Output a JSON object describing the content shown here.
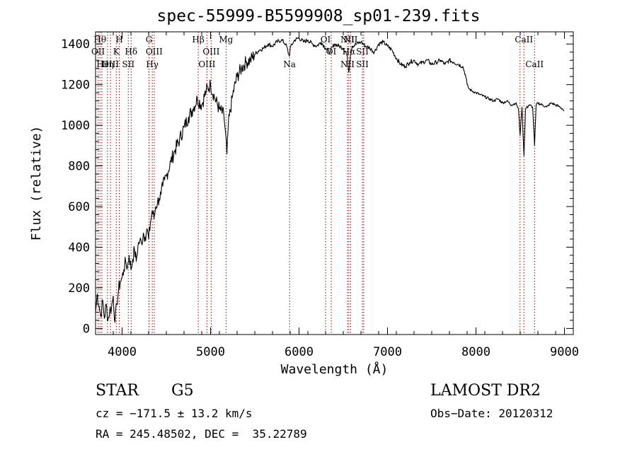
{
  "chart_data": {
    "type": "line",
    "title": "spec-55999-B5599908_sp01-239.fits",
    "xlabel": "Wavelength (Å)",
    "ylabel": "Flux (relative)",
    "xlim": [
      3700,
      9100
    ],
    "ylim": [
      -30,
      1460
    ],
    "x_ticks": [
      4000,
      5000,
      6000,
      7000,
      8000,
      9000
    ],
    "y_ticks": [
      0,
      200,
      400,
      600,
      800,
      1000,
      1200,
      1400
    ],
    "grid": false,
    "line_color": "#000000",
    "marker_color": "#8b0000",
    "series": [
      {
        "x": [
          3700,
          3720,
          3740,
          3760,
          3780,
          3800,
          3820,
          3840,
          3860,
          3880,
          3900,
          3920,
          3940,
          3960,
          3980,
          4000,
          4020,
          4040,
          4060,
          4080,
          4100,
          4120,
          4140,
          4160,
          4180,
          4200,
          4220,
          4240,
          4260,
          4280,
          4300,
          4320,
          4340,
          4360,
          4380,
          4400,
          4420,
          4440,
          4460,
          4480,
          4500,
          4550,
          4600,
          4650,
          4700,
          4750,
          4800,
          4850,
          4900,
          4950,
          5000,
          5050,
          5100,
          5150,
          5170,
          5185,
          5200,
          5250,
          5300,
          5350,
          5400,
          5450,
          5500,
          5550,
          5600,
          5650,
          5700,
          5750,
          5800,
          5850,
          5890,
          5900,
          5950,
          6000,
          6050,
          6100,
          6150,
          6200,
          6250,
          6300,
          6350,
          6400,
          6450,
          6500,
          6540,
          6563,
          6580,
          6600,
          6650,
          6700,
          6750,
          6800,
          6850,
          6900,
          6950,
          7000,
          7050,
          7100,
          7150,
          7200,
          7250,
          7300,
          7350,
          7400,
          7450,
          7500,
          7550,
          7600,
          7650,
          7700,
          7750,
          7800,
          7850,
          7880,
          7900,
          7920,
          7950,
          8000,
          8050,
          8100,
          8150,
          8200,
          8250,
          8300,
          8350,
          8400,
          8450,
          8480,
          8498,
          8520,
          8542,
          8560,
          8600,
          8640,
          8662,
          8680,
          8700,
          8750,
          8800,
          8850,
          8900,
          8950,
          8980,
          8995
        ],
        "y": [
          80,
          170,
          110,
          60,
          140,
          50,
          120,
          40,
          90,
          100,
          160,
          30,
          120,
          190,
          230,
          250,
          290,
          330,
          300,
          360,
          290,
          340,
          390,
          330,
          410,
          430,
          420,
          470,
          450,
          490,
          440,
          520,
          580,
          540,
          600,
          620,
          640,
          660,
          700,
          730,
          750,
          820,
          880,
          930,
          990,
          1040,
          1080,
          1130,
          1100,
          1170,
          1200,
          1130,
          1080,
          1050,
          960,
          860,
          1000,
          1150,
          1240,
          1280,
          1310,
          1320,
          1350,
          1370,
          1380,
          1400,
          1390,
          1410,
          1420,
          1400,
          1340,
          1380,
          1420,
          1430,
          1410,
          1420,
          1400,
          1390,
          1410,
          1380,
          1360,
          1400,
          1390,
          1380,
          1350,
          1260,
          1340,
          1390,
          1400,
          1410,
          1390,
          1380,
          1360,
          1400,
          1410,
          1390,
          1370,
          1330,
          1300,
          1290,
          1310,
          1320,
          1300,
          1310,
          1320,
          1300,
          1310,
          1320,
          1300,
          1320,
          1310,
          1300,
          1290,
          1250,
          1200,
          1180,
          1170,
          1160,
          1150,
          1140,
          1130,
          1120,
          1130,
          1110,
          1120,
          1100,
          1110,
          1080,
          950,
          1090,
          850,
          1080,
          1100,
          1090,
          900,
          1100,
          1110,
          1100,
          1090,
          1110,
          1100,
          1090,
          1080,
          1070
        ]
      }
    ],
    "line_markers": [
      {
        "x": 3729,
        "labels": [
          {
            "text": "OII",
            "row": 1
          }
        ]
      },
      {
        "x": 3750,
        "labels": [
          {
            "text": "Hθ",
            "row": 0
          }
        ]
      },
      {
        "x": 3771,
        "labels": [
          {
            "text": "Hι",
            "row": 2
          }
        ]
      },
      {
        "x": 3835,
        "labels": [
          {
            "text": "Hη",
            "row": 2
          }
        ]
      },
      {
        "x": 3869,
        "labels": [
          {
            "text": "OIII",
            "row": 2
          }
        ]
      },
      {
        "x": 3934,
        "labels": [
          {
            "text": "K",
            "row": 1
          }
        ]
      },
      {
        "x": 3969,
        "labels": [
          {
            "text": "H",
            "row": 0
          }
        ]
      },
      {
        "x": 4070,
        "labels": [
          {
            "text": "SII",
            "row": 2
          }
        ]
      },
      {
        "x": 4102,
        "labels": [
          {
            "text": "Hδ",
            "row": 1
          }
        ]
      },
      {
        "x": 4304,
        "labels": [
          {
            "text": "G",
            "row": 0
          }
        ]
      },
      {
        "x": 4341,
        "labels": [
          {
            "text": "Hγ",
            "row": 2
          }
        ]
      },
      {
        "x": 4363,
        "labels": [
          {
            "text": "OIII",
            "row": 1
          }
        ]
      },
      {
        "x": 4861,
        "labels": [
          {
            "text": "Hβ",
            "row": 0
          }
        ]
      },
      {
        "x": 4959,
        "labels": [
          {
            "text": "OIII",
            "row": 2
          }
        ]
      },
      {
        "x": 5007,
        "labels": [
          {
            "text": "OIII",
            "row": 1
          }
        ]
      },
      {
        "x": 5175,
        "labels": [
          {
            "text": "Mg",
            "row": 0
          }
        ]
      },
      {
        "x": 5893,
        "labels": [
          {
            "text": "Na",
            "row": 2
          }
        ]
      },
      {
        "x": 6300,
        "labels": [
          {
            "text": "OI",
            "row": 0
          }
        ]
      },
      {
        "x": 6364,
        "labels": [
          {
            "text": "OI",
            "row": 1
          }
        ]
      },
      {
        "x": 6548,
        "labels": [
          {
            "text": "NII",
            "row": 0
          },
          {
            "text": "NII",
            "row": 2
          }
        ]
      },
      {
        "x": 6563,
        "labels": [
          {
            "text": "Hα",
            "row": 1
          }
        ]
      },
      {
        "x": 6583,
        "labels": [
          {
            "text": "NII",
            "row": 0
          }
        ]
      },
      {
        "x": 6716,
        "labels": [
          {
            "text": "SII",
            "row": 1
          },
          {
            "text": "SII",
            "row": 2
          }
        ]
      },
      {
        "x": 6731,
        "labels": []
      },
      {
        "x": 8498,
        "labels": []
      },
      {
        "x": 8542,
        "labels": [
          {
            "text": "CaII",
            "row": 0
          }
        ]
      },
      {
        "x": 8662,
        "labels": [
          {
            "text": "CaII",
            "row": 2
          }
        ]
      }
    ]
  },
  "info": {
    "object_class": "STAR",
    "subclass": "G5",
    "survey": "LAMOST DR2",
    "redshift_line": "cz = −171.5 ± 13.2 km/s",
    "obs_date_line": "Obs−Date: 20120312",
    "coords_line": "RA = 245.48502, DEC =  35.22789"
  }
}
